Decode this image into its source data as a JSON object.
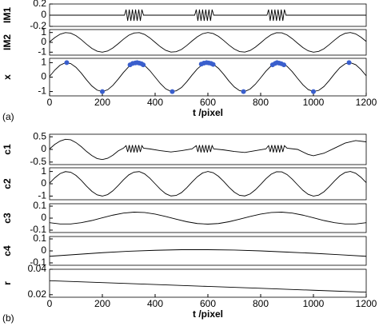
{
  "chart_data": [
    {
      "type": "line",
      "ylabel": "IM1",
      "color": "#000000",
      "xlim": [
        0,
        1200
      ],
      "ylim": [
        -0.2,
        0.2
      ],
      "yticks": [
        -0.2,
        0,
        0.2
      ],
      "x": [
        0,
        284,
        290,
        296,
        302,
        308,
        314,
        320,
        326,
        332,
        338,
        344,
        350,
        356,
        550,
        556,
        562,
        568,
        574,
        580,
        586,
        592,
        598,
        604,
        610,
        616,
        622,
        824,
        830,
        836,
        842,
        848,
        854,
        860,
        866,
        872,
        878,
        884,
        890,
        896,
        1200
      ],
      "values": [
        0,
        0,
        0.1,
        -0.1,
        0.1,
        -0.1,
        0.1,
        -0.1,
        0.1,
        -0.1,
        0.1,
        -0.1,
        0.1,
        0,
        0,
        0.1,
        -0.1,
        0.1,
        -0.1,
        0.1,
        -0.1,
        0.1,
        -0.1,
        0.1,
        -0.1,
        0.1,
        0,
        0,
        0.1,
        -0.1,
        0.1,
        -0.1,
        0.1,
        -0.1,
        0.1,
        -0.1,
        0.1,
        -0.1,
        0.1,
        0,
        0
      ]
    },
    {
      "type": "line",
      "ylabel": "IM2",
      "color": "#000000",
      "xlim": [
        0,
        1200
      ],
      "ylim": [
        -1.3,
        1.3
      ],
      "yticks": [
        -1,
        0,
        1
      ],
      "x": [
        0,
        20,
        40,
        60,
        80,
        100,
        120,
        140,
        160,
        180,
        200,
        220,
        240,
        260,
        280,
        300,
        320,
        340,
        360,
        380,
        400,
        420,
        440,
        460,
        480,
        500,
        520,
        540,
        560,
        580,
        600,
        620,
        640,
        660,
        680,
        700,
        720,
        740,
        760,
        780,
        800,
        820,
        840,
        860,
        880,
        900,
        920,
        940,
        960,
        980,
        1000,
        1020,
        1040,
        1060,
        1080,
        1100,
        1120,
        1140,
        1160,
        1180,
        1200
      ],
      "values": [
        0.05,
        0.49,
        0.83,
        0.99,
        0.94,
        0.68,
        0.28,
        -0.19,
        -0.61,
        -0.9,
        -1,
        -0.88,
        -0.57,
        -0.14,
        0.32,
        0.72,
        0.95,
        0.99,
        0.81,
        0.45,
        0,
        -0.45,
        -0.81,
        -0.99,
        -0.95,
        -0.72,
        -0.32,
        0.14,
        0.57,
        0.88,
        1,
        0.9,
        0.61,
        0.19,
        -0.28,
        -0.68,
        -0.94,
        -0.99,
        -0.83,
        -0.49,
        -0.05,
        0.41,
        0.78,
        0.98,
        0.97,
        0.75,
        0.37,
        -0.09,
        -0.53,
        -0.86,
        -1,
        -0.92,
        -0.65,
        -0.23,
        0.23,
        0.65,
        0.92,
        1,
        0.86,
        0.53,
        0.09
      ]
    },
    {
      "type": "line",
      "ylabel": "x",
      "color": "#000000",
      "xlim": [
        0,
        1200
      ],
      "ylim": [
        -1.3,
        1.3
      ],
      "yticks": [
        -1,
        0,
        1
      ],
      "xticks": [
        0,
        200,
        400,
        600,
        800,
        1000,
        1200
      ],
      "xlabel": "t /pixel",
      "panel_label": "(a)",
      "x": [
        0,
        20,
        40,
        60,
        80,
        100,
        120,
        140,
        160,
        180,
        200,
        220,
        240,
        260,
        280,
        300,
        320,
        340,
        360,
        380,
        400,
        420,
        440,
        460,
        480,
        500,
        520,
        540,
        560,
        580,
        600,
        620,
        640,
        660,
        680,
        700,
        720,
        740,
        760,
        780,
        800,
        820,
        840,
        860,
        880,
        900,
        920,
        940,
        960,
        980,
        1000,
        1020,
        1040,
        1060,
        1080,
        1100,
        1120,
        1140,
        1160,
        1180,
        1200
      ],
      "values": [
        0.05,
        0.49,
        0.83,
        0.99,
        0.94,
        0.68,
        0.28,
        -0.19,
        -0.61,
        -0.9,
        -1,
        -0.88,
        -0.57,
        -0.14,
        0.32,
        0.72,
        0.95,
        0.99,
        0.81,
        0.45,
        0,
        -0.45,
        -0.81,
        -0.99,
        -0.95,
        -0.72,
        -0.32,
        0.14,
        0.57,
        0.88,
        1,
        0.9,
        0.61,
        0.19,
        -0.28,
        -0.68,
        -0.94,
        -0.99,
        -0.83,
        -0.49,
        -0.05,
        0.41,
        0.78,
        0.98,
        0.97,
        0.75,
        0.37,
        -0.09,
        -0.53,
        -0.86,
        -1,
        -0.92,
        -0.65,
        -0.23,
        0.23,
        0.65,
        0.92,
        1,
        0.86,
        0.53,
        0.09
      ],
      "markers": {
        "color": "#3a5fcd",
        "x": [
          65,
          200,
          305,
          315,
          325,
          332,
          340,
          348,
          355,
          465,
          575,
          585,
          595,
          603,
          612,
          620,
          735,
          845,
          855,
          862,
          870,
          878,
          888,
          1000,
          1135
        ],
        "y": [
          1,
          -1,
          0.85,
          0.95,
          0.98,
          1,
          0.97,
          0.93,
          0.85,
          -1,
          0.9,
          0.97,
          1,
          0.98,
          0.95,
          0.88,
          -1,
          0.85,
          0.95,
          1,
          0.97,
          0.93,
          0.85,
          -1,
          1
        ]
      }
    },
    {
      "type": "line",
      "ylabel": "c1",
      "color": "#000000",
      "xlim": [
        0,
        1200
      ],
      "ylim": [
        -0.6,
        0.6
      ],
      "yticks": [
        -0.5,
        0,
        0.5
      ],
      "x": [
        0,
        20,
        40,
        60,
        80,
        100,
        120,
        140,
        160,
        180,
        200,
        220,
        240,
        260,
        280,
        290,
        296,
        302,
        308,
        314,
        320,
        326,
        332,
        338,
        344,
        350,
        356,
        380,
        420,
        460,
        500,
        540,
        556,
        562,
        568,
        574,
        580,
        586,
        592,
        598,
        604,
        610,
        616,
        622,
        660,
        700,
        740,
        780,
        820,
        830,
        836,
        842,
        848,
        854,
        860,
        866,
        872,
        878,
        884,
        890,
        900,
        940,
        980,
        1000,
        1040,
        1080,
        1120,
        1160,
        1200
      ],
      "values": [
        0.02,
        0.2,
        0.33,
        0.4,
        0.38,
        0.27,
        0.11,
        -0.08,
        -0.24,
        -0.36,
        -0.4,
        -0.35,
        -0.23,
        -0.06,
        0.05,
        0.15,
        -0.1,
        0.17,
        -0.12,
        0.17,
        -0.12,
        0.17,
        -0.12,
        0.17,
        -0.1,
        0.15,
        0.05,
        0.02,
        -0.05,
        -0.1,
        -0.05,
        0.02,
        0.15,
        -0.1,
        0.17,
        -0.12,
        0.17,
        -0.12,
        0.17,
        -0.12,
        0.17,
        -0.1,
        0.15,
        0.02,
        -0.02,
        -0.08,
        -0.12,
        -0.05,
        0.02,
        0.15,
        -0.1,
        0.17,
        -0.12,
        0.17,
        -0.12,
        0.17,
        -0.12,
        0.17,
        -0.1,
        0.15,
        0.05,
        0,
        -0.2,
        -0.25,
        -0.15,
        0.05,
        0.25,
        0.35,
        0.3
      ]
    },
    {
      "type": "line",
      "ylabel": "c2",
      "color": "#000000",
      "xlim": [
        0,
        1200
      ],
      "ylim": [
        -1.3,
        1.3
      ],
      "yticks": [
        -1,
        0,
        1
      ],
      "x": [
        0,
        20,
        40,
        60,
        80,
        100,
        120,
        140,
        160,
        180,
        200,
        220,
        240,
        260,
        280,
        300,
        320,
        340,
        360,
        380,
        400,
        420,
        440,
        460,
        480,
        500,
        520,
        540,
        560,
        580,
        600,
        620,
        640,
        660,
        680,
        700,
        720,
        740,
        760,
        780,
        800,
        820,
        840,
        860,
        880,
        900,
        920,
        940,
        960,
        980,
        1000,
        1020,
        1040,
        1060,
        1080,
        1100,
        1120,
        1140,
        1160,
        1180,
        1200
      ],
      "values": [
        0.05,
        0.49,
        0.83,
        0.99,
        0.94,
        0.68,
        0.28,
        -0.19,
        -0.61,
        -0.9,
        -1,
        -0.88,
        -0.57,
        -0.14,
        0.32,
        0.72,
        0.95,
        0.99,
        0.81,
        0.45,
        0,
        -0.45,
        -0.81,
        -0.99,
        -0.95,
        -0.72,
        -0.32,
        0.14,
        0.57,
        0.88,
        1,
        0.9,
        0.61,
        0.19,
        -0.28,
        -0.68,
        -0.94,
        -0.99,
        -0.83,
        -0.49,
        -0.05,
        0.41,
        0.78,
        0.98,
        0.97,
        0.75,
        0.37,
        -0.09,
        -0.53,
        -0.86,
        -1,
        -0.92,
        -0.65,
        -0.23,
        0.23,
        0.65,
        0.92,
        1,
        0.86,
        0.53,
        0.09
      ]
    },
    {
      "type": "line",
      "ylabel": "c3",
      "color": "#000000",
      "xlim": [
        0,
        1200
      ],
      "ylim": [
        -0.12,
        0.12
      ],
      "yticks": [
        -0.1,
        0,
        0.1
      ],
      "x": [
        0,
        40,
        80,
        120,
        160,
        200,
        240,
        280,
        320,
        360,
        400,
        440,
        480,
        520,
        560,
        600,
        640,
        680,
        720,
        760,
        800,
        840,
        880,
        920,
        960,
        1000,
        1040,
        1080,
        1120,
        1160,
        1200
      ],
      "values": [
        -0.038,
        -0.049,
        -0.049,
        -0.038,
        -0.02,
        0.003,
        0.025,
        0.042,
        0.05,
        0.047,
        0.034,
        0.014,
        -0.009,
        -0.03,
        -0.045,
        -0.05,
        -0.045,
        -0.03,
        -0.009,
        0.014,
        0.034,
        0.047,
        0.05,
        0.042,
        0.025,
        0.003,
        -0.02,
        -0.038,
        -0.049,
        -0.049,
        -0.038
      ]
    },
    {
      "type": "line",
      "ylabel": "c4",
      "color": "#000000",
      "xlim": [
        0,
        1200
      ],
      "ylim": [
        -0.12,
        0.12
      ],
      "yticks": [
        -0.1,
        0,
        0.1
      ],
      "x": [
        0,
        100,
        200,
        300,
        400,
        500,
        600,
        700,
        800,
        900,
        1000,
        1100,
        1200
      ],
      "values": [
        -0.045,
        -0.03,
        -0.015,
        -0.003,
        0.005,
        0.01,
        0.01,
        0.007,
        0,
        -0.01,
        -0.02,
        -0.032,
        -0.045
      ]
    },
    {
      "type": "line",
      "ylabel": "r",
      "color": "#000000",
      "xlim": [
        0,
        1200
      ],
      "ylim": [
        0.018,
        0.04
      ],
      "yticks": [
        0.02,
        0.04
      ],
      "xticks": [
        0,
        200,
        400,
        600,
        800,
        1000,
        1200
      ],
      "xlabel": "t /pixel",
      "panel_label": "(b)",
      "x": [
        0,
        200,
        400,
        600,
        800,
        1000,
        1200
      ],
      "values": [
        0.031,
        0.0295,
        0.028,
        0.0265,
        0.025,
        0.0235,
        0.022
      ]
    }
  ]
}
